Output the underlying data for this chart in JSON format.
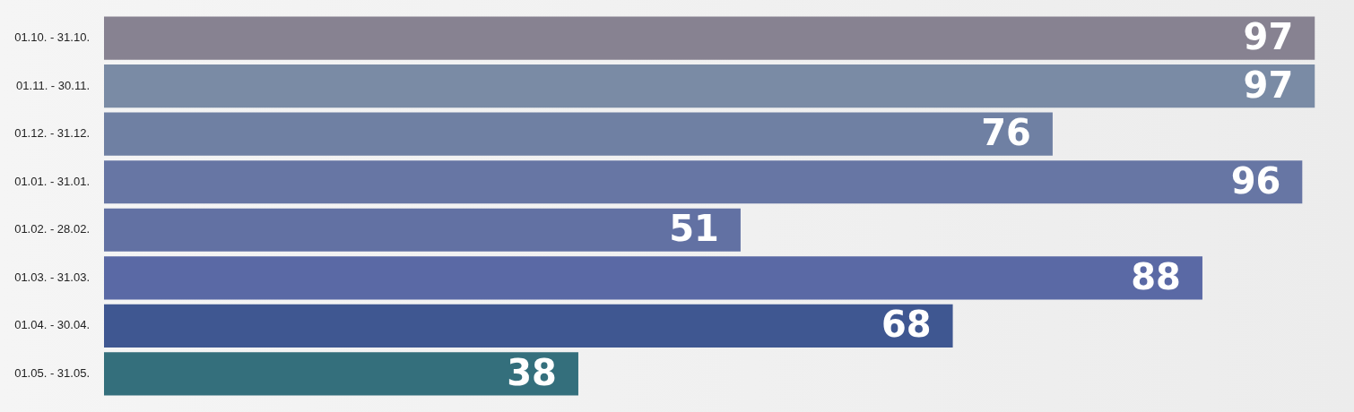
{
  "chart_data": {
    "type": "bar",
    "orientation": "horizontal",
    "categories": [
      "01.10. - 31.10.",
      "01.11. - 30.11.",
      "01.12. - 31.12.",
      "01.01. - 31.01.",
      "01.02. - 28.02.",
      "01.03. - 31.03.",
      "01.04. - 30.04.",
      "01.05. - 31.05."
    ],
    "values": [
      97,
      97,
      76,
      96,
      51,
      88,
      68,
      38
    ],
    "colors": [
      "#878291",
      "#7a8ba5",
      "#6f80a3",
      "#6776a4",
      "#6271a3",
      "#5a69a5",
      "#3f5791",
      "#346f7c"
    ],
    "tick_labels": "y",
    "data_labels": true
  }
}
